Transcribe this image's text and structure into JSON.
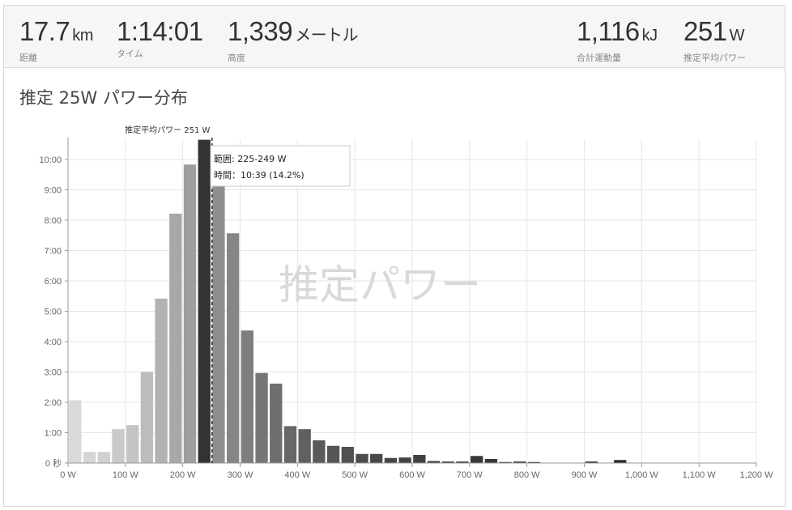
{
  "stats": {
    "distance": {
      "value": "17.7",
      "unit": "km",
      "label": "距離"
    },
    "time": {
      "value": "1:14:01",
      "unit": "",
      "label": "タイム"
    },
    "elevation": {
      "value": "1,339",
      "unit": "メートル",
      "label": "高度"
    },
    "work": {
      "value": "1,116",
      "unit": "kJ",
      "label": "合計運動量"
    },
    "power": {
      "value": "251",
      "unit": "W",
      "label": "推定平均パワー"
    }
  },
  "section_title": "推定 25W パワー分布",
  "watermark": "推定パワー",
  "colors": {
    "accent": "#333333",
    "grid": "#e6e6e6",
    "avg_line": "#222222"
  },
  "chart_data": {
    "type": "bar",
    "x_unit": "W",
    "bin_width_w": 25,
    "bins_start_w": [
      0,
      25,
      50,
      75,
      100,
      125,
      150,
      175,
      200,
      225,
      250,
      275,
      300,
      325,
      350,
      375,
      400,
      425,
      450,
      475,
      500,
      525,
      550,
      575,
      600,
      625,
      650,
      675,
      700,
      725,
      750,
      775,
      800,
      825,
      850,
      875,
      900,
      925,
      950,
      975
    ],
    "values_sec": [
      124,
      22,
      22,
      67,
      75,
      180,
      325,
      493,
      590,
      639,
      570,
      454,
      262,
      178,
      157,
      73,
      67,
      45,
      34,
      32,
      18,
      18,
      10,
      11,
      16,
      4,
      3,
      3,
      14,
      8,
      2,
      3,
      2,
      0,
      0,
      0,
      3,
      0,
      6,
      0
    ],
    "bar_shades": [
      "#d9d9d9",
      "#d5d5d5",
      "#d1d1d1",
      "#cacaca",
      "#c4c4c4",
      "#bcbcbc",
      "#b2b2b2",
      "#a8a8a8",
      "#9f9f9f",
      "#333333",
      "#8e8e8e",
      "#868686",
      "#7e7e7e",
      "#767676",
      "#6e6e6e",
      "#676767",
      "#606060",
      "#5a5a5a",
      "#555555",
      "#505050",
      "#4c4c4c",
      "#494949",
      "#464646",
      "#434343",
      "#404040",
      "#3e3e3e",
      "#3c3c3c",
      "#3a3a3a",
      "#383838",
      "#363636",
      "#343434",
      "#333333",
      "#323232",
      "#313131",
      "#303030",
      "#2f2f2f",
      "#2e2e2e",
      "#2d2d2d",
      "#2c2c2c",
      "#2b2b2b"
    ],
    "x_ticks": [
      "0 W",
      "100 W",
      "200 W",
      "300 W",
      "400 W",
      "500 W",
      "600 W",
      "700 W",
      "800 W",
      "900 W",
      "1,000 W",
      "1,100 W",
      "1,200 W"
    ],
    "x_tick_values": [
      0,
      100,
      200,
      300,
      400,
      500,
      600,
      700,
      800,
      900,
      1000,
      1100,
      1200
    ],
    "y_ticks": [
      "0 秒",
      "1:00",
      "2:00",
      "3:00",
      "4:00",
      "5:00",
      "6:00",
      "7:00",
      "8:00",
      "9:00",
      "10:00"
    ],
    "y_tick_values": [
      0,
      60,
      120,
      180,
      240,
      300,
      360,
      420,
      480,
      540,
      600
    ],
    "xlim": [
      0,
      1200
    ],
    "ylim": [
      0,
      640
    ],
    "grid": true,
    "avg_line": {
      "label": "推定平均パワー 251 W",
      "value_w": 251
    },
    "tooltip": {
      "range": "範囲: 225-249 W",
      "time": "時間：10:39 (14.2%)"
    }
  }
}
